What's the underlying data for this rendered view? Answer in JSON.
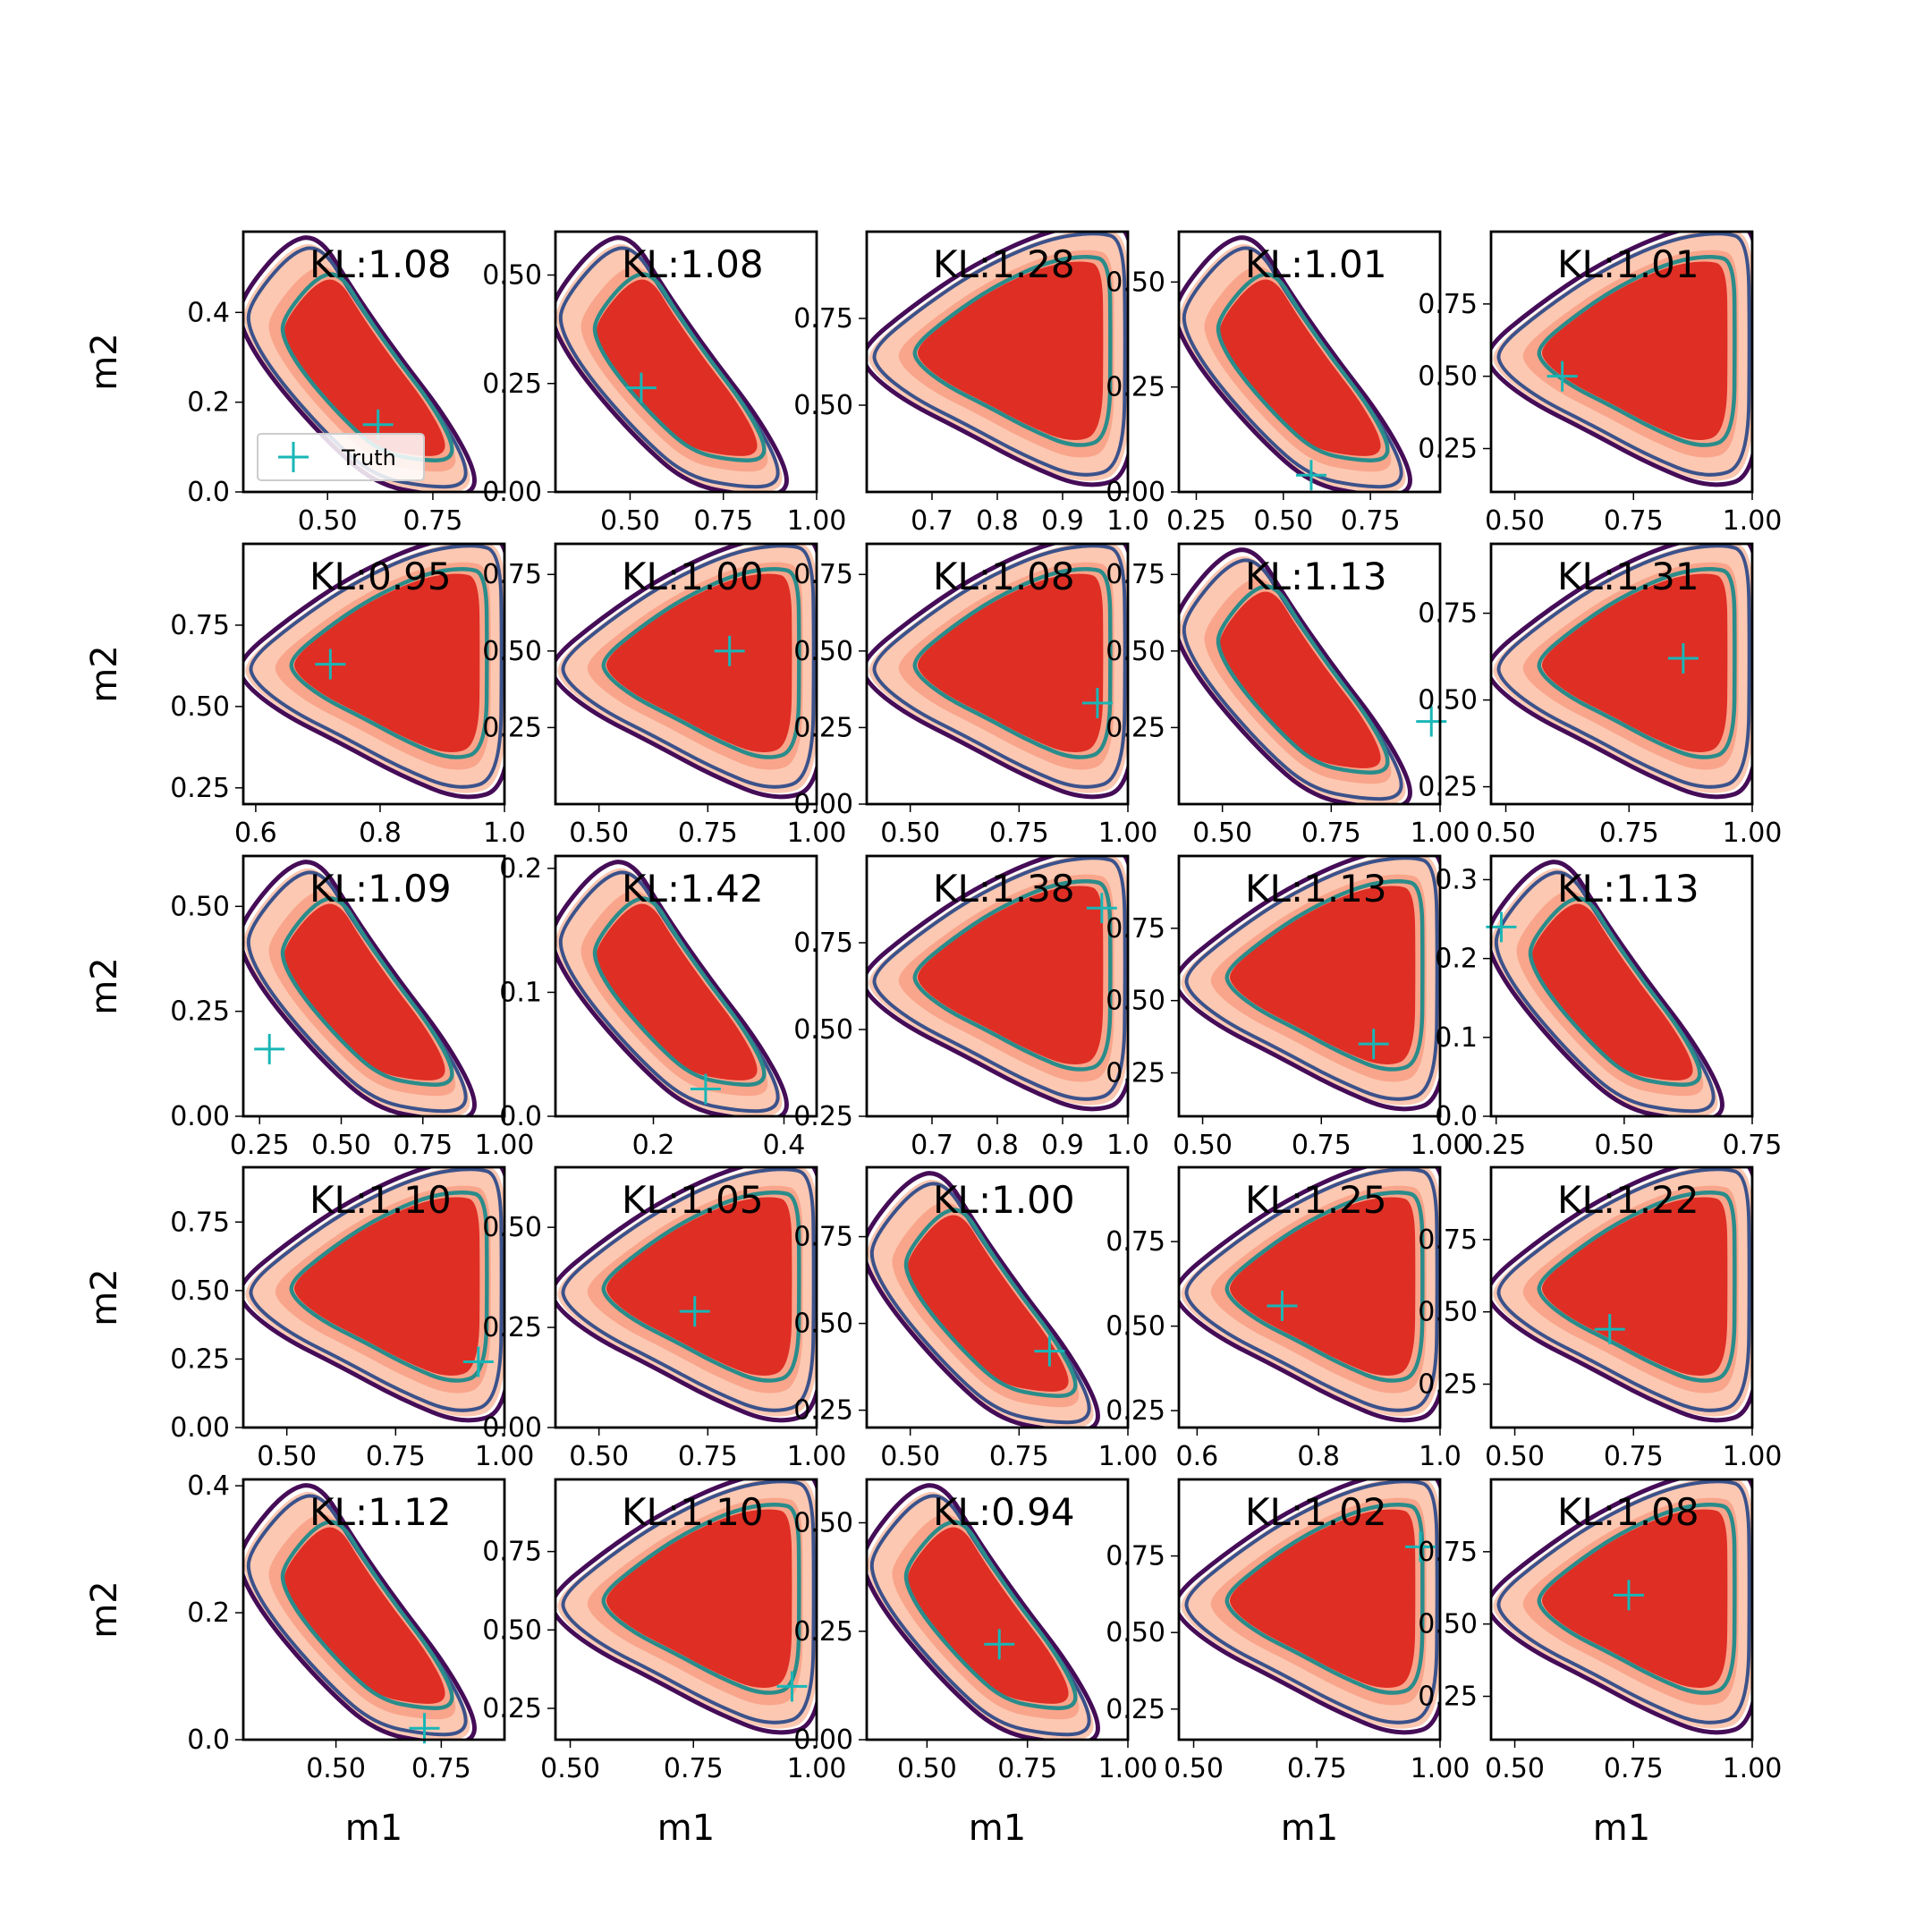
{
  "chart_data": {
    "type": "contour-grid",
    "rows": 5,
    "cols": 5,
    "xlabel": "m1",
    "ylabel": "m2",
    "legend": {
      "label": "Truth",
      "position": "lower-left"
    },
    "colors": {
      "fill_outer": "#fcc8b2",
      "fill_mid": "#f6896b",
      "fill_inner": "#df2e24",
      "line_outer": "#450c57",
      "line_mid": "#3b528b",
      "line_inner": "#2a8c8a",
      "truth": "#19b6b6"
    },
    "panels": [
      {
        "kl": "KL:1.08",
        "xlim": [
          0.3,
          0.92
        ],
        "ylim": [
          0,
          0.58
        ],
        "xticks": [
          "0.50",
          "0.75"
        ],
        "yticks": [
          "0.0",
          "0.2",
          "0.4"
        ],
        "shape": "diag",
        "truth": [
          0.62,
          0.15
        ]
      },
      {
        "kl": "KL:1.08",
        "xlim": [
          0.3,
          1.0
        ],
        "ylim": [
          0,
          0.6
        ],
        "xticks": [
          "0.50",
          "0.75",
          "1.00"
        ],
        "yticks": [
          "0.00",
          "0.25",
          "0.50"
        ],
        "shape": "diag",
        "truth": [
          0.53,
          0.24
        ]
      },
      {
        "kl": "KL:1.28",
        "xlim": [
          0.6,
          1.0
        ],
        "ylim": [
          0.25,
          1.0
        ],
        "xticks": [
          "0.7",
          "0.8",
          "0.9",
          "1.0"
        ],
        "yticks": [
          "0.50",
          "0.75"
        ],
        "shape": "tri",
        "truth": null
      },
      {
        "kl": "KL:1.01",
        "xlim": [
          0.2,
          0.95
        ],
        "ylim": [
          0,
          0.62
        ],
        "xticks": [
          "0.25",
          "0.50",
          "0.75"
        ],
        "yticks": [
          "0.00",
          "0.25",
          "0.50"
        ],
        "shape": "diag",
        "truth": [
          0.58,
          0.04
        ]
      },
      {
        "kl": "KL:1.01",
        "xlim": [
          0.45,
          1.0
        ],
        "ylim": [
          0.1,
          1.0
        ],
        "xticks": [
          "0.50",
          "0.75",
          "1.00"
        ],
        "yticks": [
          "0.25",
          "0.50",
          "0.75"
        ],
        "shape": "tri",
        "truth": [
          0.6,
          0.5
        ]
      },
      {
        "kl": "KL:0.95",
        "xlim": [
          0.58,
          1.0
        ],
        "ylim": [
          0.2,
          1.0
        ],
        "xticks": [
          "0.6",
          "0.8",
          "1.0"
        ],
        "yticks": [
          "0.25",
          "0.50",
          "0.75"
        ],
        "shape": "tri",
        "truth": [
          0.72,
          0.63
        ]
      },
      {
        "kl": "KL:1.00",
        "xlim": [
          0.4,
          1.0
        ],
        "ylim": [
          0,
          0.85
        ],
        "xticks": [
          "0.50",
          "0.75",
          "1.00"
        ],
        "yticks": [
          "0.25",
          "0.50",
          "0.75"
        ],
        "shape": "tri",
        "truth": [
          0.8,
          0.5
        ]
      },
      {
        "kl": "KL:1.08",
        "xlim": [
          0.4,
          1.0
        ],
        "ylim": [
          0,
          0.85
        ],
        "xticks": [
          "0.50",
          "0.75",
          "1.00"
        ],
        "yticks": [
          "0.00",
          "0.25",
          "0.50",
          "0.75"
        ],
        "shape": "tri",
        "truth": [
          0.93,
          0.33
        ]
      },
      {
        "kl": "KL:1.13",
        "xlim": [
          0.4,
          1.0
        ],
        "ylim": [
          0,
          0.85
        ],
        "xticks": [
          "0.50",
          "0.75",
          "1.00"
        ],
        "yticks": [
          "0.25",
          "0.50",
          "0.75"
        ],
        "shape": "diag",
        "truth": [
          0.98,
          0.27
        ]
      },
      {
        "kl": "KL:1.31",
        "xlim": [
          0.47,
          1.0
        ],
        "ylim": [
          0.2,
          0.95
        ],
        "xticks": [
          "0.50",
          "0.75",
          "1.00"
        ],
        "yticks": [
          "0.25",
          "0.50",
          "0.75"
        ],
        "shape": "tri",
        "truth": [
          0.86,
          0.62
        ]
      },
      {
        "kl": "KL:1.09",
        "xlim": [
          0.2,
          1.0
        ],
        "ylim": [
          0,
          0.62
        ],
        "xticks": [
          "0.25",
          "0.50",
          "0.75",
          "1.00"
        ],
        "yticks": [
          "0.00",
          "0.25",
          "0.50"
        ],
        "shape": "diag",
        "truth": [
          0.28,
          0.16
        ]
      },
      {
        "kl": "KL:1.42",
        "xlim": [
          0.05,
          0.45
        ],
        "ylim": [
          0,
          0.21
        ],
        "xticks": [
          "0.2",
          "0.4"
        ],
        "yticks": [
          "0.0",
          "0.1",
          "0.2"
        ],
        "shape": "diag",
        "truth": [
          0.28,
          0.022
        ]
      },
      {
        "kl": "KL:1.38",
        "xlim": [
          0.6,
          1.0
        ],
        "ylim": [
          0.25,
          1.0
        ],
        "xticks": [
          "0.7",
          "0.8",
          "0.9",
          "1.0"
        ],
        "yticks": [
          "0.25",
          "0.50",
          "0.75"
        ],
        "shape": "tri",
        "truth": [
          0.96,
          0.85
        ]
      },
      {
        "kl": "KL:1.13",
        "xlim": [
          0.45,
          1.0
        ],
        "ylim": [
          0.1,
          1.0
        ],
        "xticks": [
          "0.50",
          "0.75",
          "1.00"
        ],
        "yticks": [
          "0.25",
          "0.50",
          "0.75"
        ],
        "shape": "tri",
        "truth": [
          0.86,
          0.35
        ]
      },
      {
        "kl": "KL:1.13",
        "xlim": [
          0.24,
          0.75
        ],
        "ylim": [
          0,
          0.33
        ],
        "xticks": [
          "0.25",
          "0.50",
          "0.75"
        ],
        "yticks": [
          "0.0",
          "0.1",
          "0.2",
          "0.3"
        ],
        "shape": "diag",
        "truth": [
          0.26,
          0.24
        ]
      },
      {
        "kl": "KL:1.10",
        "xlim": [
          0.4,
          1.0
        ],
        "ylim": [
          0,
          0.95
        ],
        "xticks": [
          "0.50",
          "0.75",
          "1.00"
        ],
        "yticks": [
          "0.00",
          "0.25",
          "0.50",
          "0.75"
        ],
        "shape": "tri",
        "truth": [
          0.94,
          0.24
        ]
      },
      {
        "kl": "KL:1.05",
        "xlim": [
          0.4,
          1.0
        ],
        "ylim": [
          0,
          0.65
        ],
        "xticks": [
          "0.50",
          "0.75",
          "1.00"
        ],
        "yticks": [
          "0.00",
          "0.25",
          "0.50"
        ],
        "shape": "tri",
        "truth": [
          0.72,
          0.29
        ]
      },
      {
        "kl": "KL:1.00",
        "xlim": [
          0.4,
          1.0
        ],
        "ylim": [
          0.2,
          0.95
        ],
        "xticks": [
          "0.50",
          "0.75",
          "1.00"
        ],
        "yticks": [
          "0.25",
          "0.50",
          "0.75"
        ],
        "shape": "diag",
        "truth": [
          0.82,
          0.42
        ]
      },
      {
        "kl": "KL:1.25",
        "xlim": [
          0.57,
          1.0
        ],
        "ylim": [
          0.2,
          0.97
        ],
        "xticks": [
          "0.6",
          "0.8",
          "1.0"
        ],
        "yticks": [
          "0.25",
          "0.50",
          "0.75"
        ],
        "shape": "tri",
        "truth": [
          0.74,
          0.56
        ]
      },
      {
        "kl": "KL:1.22",
        "xlim": [
          0.45,
          1.0
        ],
        "ylim": [
          0.1,
          1.0
        ],
        "xticks": [
          "0.50",
          "0.75",
          "1.00"
        ],
        "yticks": [
          "0.25",
          "0.50",
          "0.75"
        ],
        "shape": "tri",
        "truth": [
          0.7,
          0.44
        ]
      },
      {
        "kl": "KL:1.12",
        "xlim": [
          0.28,
          0.9
        ],
        "ylim": [
          0,
          0.41
        ],
        "xticks": [
          "0.50",
          "0.75"
        ],
        "yticks": [
          "0.0",
          "0.2",
          "0.4"
        ],
        "shape": "diag",
        "truth": [
          0.71,
          0.018
        ]
      },
      {
        "kl": "KL:1.10",
        "xlim": [
          0.47,
          1.0
        ],
        "ylim": [
          0.15,
          0.98
        ],
        "xticks": [
          "0.50",
          "0.75",
          "1.00"
        ],
        "yticks": [
          "0.25",
          "0.50",
          "0.75"
        ],
        "shape": "tri",
        "truth": [
          0.95,
          0.32
        ]
      },
      {
        "kl": "KL:0.94",
        "xlim": [
          0.35,
          1.0
        ],
        "ylim": [
          0,
          0.6
        ],
        "xticks": [
          "0.50",
          "0.75",
          "1.00"
        ],
        "yticks": [
          "0.00",
          "0.25",
          "0.50"
        ],
        "shape": "diag",
        "truth": [
          0.68,
          0.22
        ]
      },
      {
        "kl": "KL:1.02",
        "xlim": [
          0.47,
          1.0
        ],
        "ylim": [
          0.15,
          1.0
        ],
        "xticks": [
          "0.50",
          "0.75",
          "1.00"
        ],
        "yticks": [
          "0.25",
          "0.50",
          "0.75"
        ],
        "shape": "tri",
        "truth": [
          0.96,
          0.78
        ]
      },
      {
        "kl": "KL:1.08",
        "xlim": [
          0.45,
          1.0
        ],
        "ylim": [
          0.1,
          1.0
        ],
        "xticks": [
          "0.50",
          "0.75",
          "1.00"
        ],
        "yticks": [
          "0.25",
          "0.50",
          "0.75"
        ],
        "shape": "tri",
        "truth": [
          0.74,
          0.6
        ]
      }
    ]
  }
}
